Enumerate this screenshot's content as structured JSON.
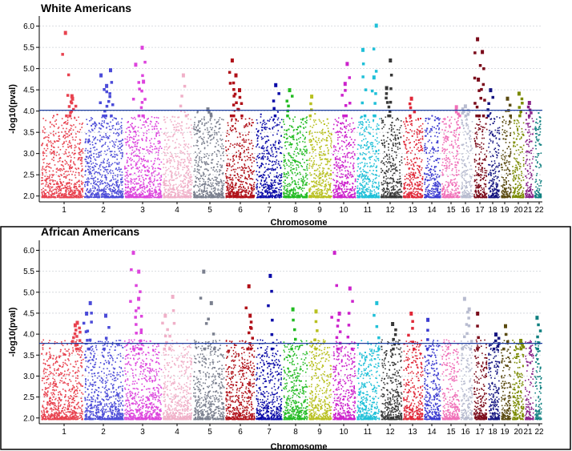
{
  "chart_data": [
    {
      "type": "scatter",
      "title": "White Americans",
      "xlabel": "Chromosome",
      "ylabel": "-log10(pval)",
      "ylim": [
        1.9,
        6.2
      ],
      "yticks": [
        "2.0",
        "2.5",
        "3.0",
        "3.5",
        "4.0",
        "4.5",
        "5.0",
        "5.5",
        "6.0"
      ],
      "threshold": 4.02,
      "grid": true,
      "categories": [
        "1",
        "2",
        "3",
        "4",
        "5",
        "6",
        "7",
        "8",
        "9",
        "10",
        "11",
        "12",
        "13",
        "14",
        "15",
        "16",
        "17",
        "18",
        "19",
        "20",
        "21",
        "22"
      ],
      "colors": [
        "#e8424f",
        "#4b4bd8",
        "#dd44dd",
        "#f0b0c8",
        "#7a7f8e",
        "#b01018",
        "#0a0aa8",
        "#22bb22",
        "#b8c020",
        "#cc22cc",
        "#20c0d8",
        "#383838",
        "#e02838",
        "#3a3ad0",
        "#f070b8",
        "#b8bcd0",
        "#7a0a1a",
        "#141480",
        "#5a4a10",
        "#7a8a00",
        "#882288",
        "#108080"
      ],
      "peaks": [
        {
          "chr": "1",
          "y": 5.85
        },
        {
          "chr": "1",
          "y": 4.36
        },
        {
          "chr": "1",
          "y": 4.3
        },
        {
          "chr": "2",
          "y": 4.97
        },
        {
          "chr": "2",
          "y": 4.85
        },
        {
          "chr": "2",
          "y": 4.6
        },
        {
          "chr": "3",
          "y": 5.5
        },
        {
          "chr": "3",
          "y": 5.1
        },
        {
          "chr": "3",
          "y": 4.7
        },
        {
          "chr": "4",
          "y": 4.85
        },
        {
          "chr": "5",
          "y": 4.05
        },
        {
          "chr": "6",
          "y": 5.2
        },
        {
          "chr": "6",
          "y": 4.85
        },
        {
          "chr": "6",
          "y": 4.5
        },
        {
          "chr": "7",
          "y": 4.62
        },
        {
          "chr": "8",
          "y": 4.5
        },
        {
          "chr": "9",
          "y": 4.35
        },
        {
          "chr": "10",
          "y": 5.12
        },
        {
          "chr": "10",
          "y": 4.65
        },
        {
          "chr": "11",
          "y": 6.02
        },
        {
          "chr": "11",
          "y": 5.45
        },
        {
          "chr": "11",
          "y": 4.8
        },
        {
          "chr": "12",
          "y": 5.2
        },
        {
          "chr": "12",
          "y": 4.55
        },
        {
          "chr": "13",
          "y": 4.3
        },
        {
          "chr": "15",
          "y": 4.1
        },
        {
          "chr": "16",
          "y": 4.12
        },
        {
          "chr": "17",
          "y": 5.7
        },
        {
          "chr": "17",
          "y": 5.4
        },
        {
          "chr": "17",
          "y": 4.75
        },
        {
          "chr": "18",
          "y": 4.5
        },
        {
          "chr": "19",
          "y": 4.3
        },
        {
          "chr": "20",
          "y": 4.42
        },
        {
          "chr": "21",
          "y": 4.2
        }
      ]
    },
    {
      "type": "scatter",
      "title": "African Americans",
      "xlabel": "Chromosome",
      "ylabel": "-log10(pval)",
      "ylim": [
        1.9,
        6.2
      ],
      "yticks": [
        "2.0",
        "2.5",
        "3.0",
        "3.5",
        "4.0",
        "4.5",
        "5.0",
        "5.5",
        "6.0"
      ],
      "threshold": 3.78,
      "grid": true,
      "categories": [
        "1",
        "2",
        "3",
        "4",
        "5",
        "6",
        "7",
        "8",
        "9",
        "10",
        "11",
        "12",
        "13",
        "14",
        "15",
        "16",
        "17",
        "18",
        "19",
        "20",
        "21",
        "22"
      ],
      "colors": [
        "#e8424f",
        "#4b4bd8",
        "#dd44dd",
        "#f0b0c8",
        "#7a7f8e",
        "#b01018",
        "#0a0aa8",
        "#22bb22",
        "#b8c020",
        "#cc22cc",
        "#20c0d8",
        "#383838",
        "#e02838",
        "#3a3ad0",
        "#f070b8",
        "#b8bcd0",
        "#7a0a1a",
        "#141480",
        "#5a4a10",
        "#7a8a00",
        "#882288",
        "#108080"
      ],
      "peaks": [
        {
          "chr": "1",
          "y": 4.28
        },
        {
          "chr": "1",
          "y": 4.22
        },
        {
          "chr": "2",
          "y": 4.75
        },
        {
          "chr": "2",
          "y": 4.5
        },
        {
          "chr": "2",
          "y": 4.45
        },
        {
          "chr": "3",
          "y": 5.95
        },
        {
          "chr": "3",
          "y": 5.5
        },
        {
          "chr": "3",
          "y": 4.85
        },
        {
          "chr": "4",
          "y": 4.9
        },
        {
          "chr": "4",
          "y": 4.45
        },
        {
          "chr": "5",
          "y": 5.5
        },
        {
          "chr": "5",
          "y": 4.75
        },
        {
          "chr": "6",
          "y": 5.15
        },
        {
          "chr": "6",
          "y": 4.45
        },
        {
          "chr": "7",
          "y": 5.4
        },
        {
          "chr": "8",
          "y": 4.6
        },
        {
          "chr": "9",
          "y": 4.55
        },
        {
          "chr": "10",
          "y": 5.95
        },
        {
          "chr": "10",
          "y": 5.1
        },
        {
          "chr": "10",
          "y": 4.5
        },
        {
          "chr": "11",
          "y": 4.75
        },
        {
          "chr": "12",
          "y": 4.25
        },
        {
          "chr": "13",
          "y": 4.5
        },
        {
          "chr": "14",
          "y": 4.35
        },
        {
          "chr": "16",
          "y": 4.85
        },
        {
          "chr": "16",
          "y": 4.6
        },
        {
          "chr": "17",
          "y": 4.5
        },
        {
          "chr": "18",
          "y": 4.0
        },
        {
          "chr": "19",
          "y": 4.2
        },
        {
          "chr": "20",
          "y": 3.85
        },
        {
          "chr": "22",
          "y": 4.4
        }
      ]
    }
  ]
}
